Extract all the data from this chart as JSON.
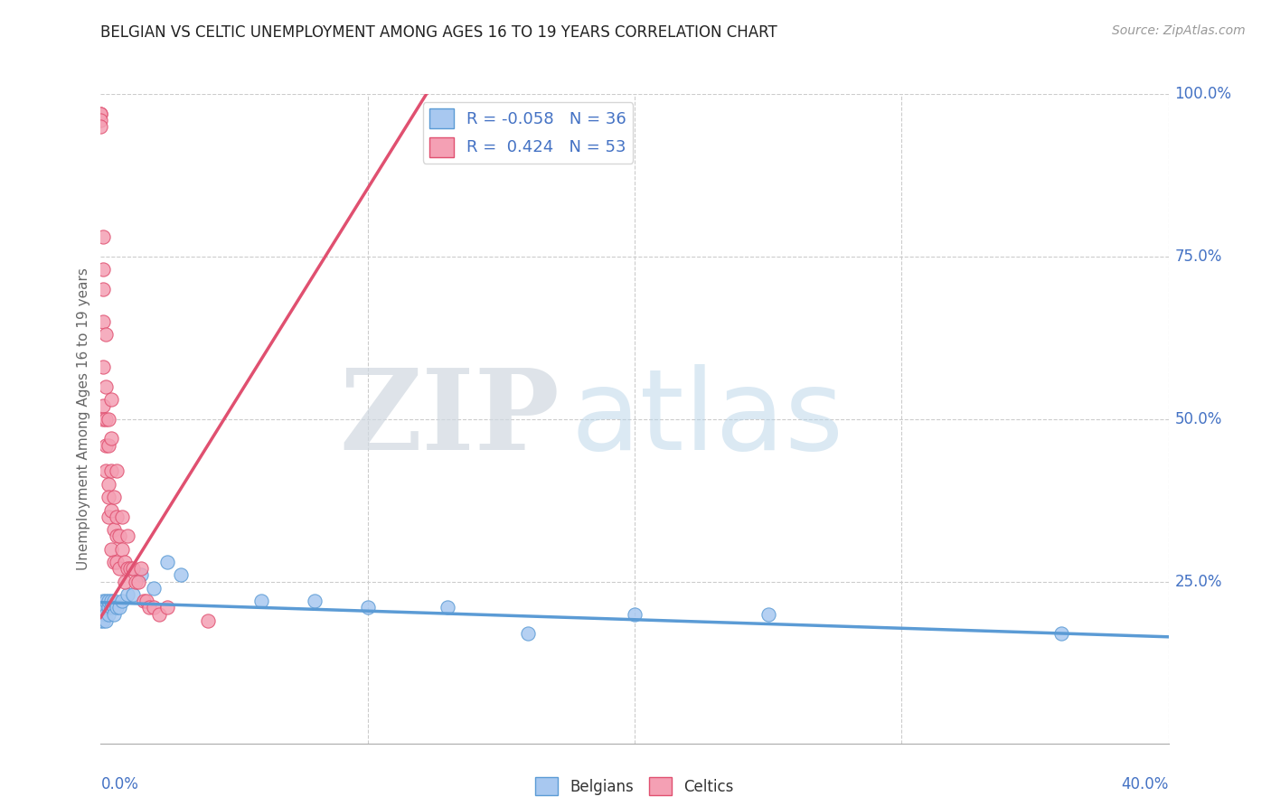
{
  "title": "BELGIAN VS CELTIC UNEMPLOYMENT AMONG AGES 16 TO 19 YEARS CORRELATION CHART",
  "source": "Source: ZipAtlas.com",
  "ylabel_label": "Unemployment Among Ages 16 to 19 years",
  "legend_labels": [
    "Belgians",
    "Celtics"
  ],
  "belgian_color": "#a8c8f0",
  "celtic_color": "#f4a0b4",
  "belgian_line_color": "#5b9bd5",
  "celtic_line_color": "#e05070",
  "R_belgian": -0.058,
  "N_belgian": 36,
  "R_celtic": 0.424,
  "N_celtic": 53,
  "watermark_zip": "ZIP",
  "watermark_atlas": "atlas",
  "background_color": "#ffffff",
  "grid_color": "#cccccc",
  "axis_color": "#4472c4",
  "xlim": [
    0.0,
    0.4
  ],
  "ylim": [
    0.0,
    1.0
  ],
  "belgians_x": [
    0.0,
    0.0,
    0.0,
    0.001,
    0.001,
    0.001,
    0.001,
    0.002,
    0.002,
    0.002,
    0.002,
    0.003,
    0.003,
    0.003,
    0.004,
    0.004,
    0.005,
    0.005,
    0.005,
    0.006,
    0.007,
    0.008,
    0.01,
    0.012,
    0.015,
    0.02,
    0.025,
    0.03,
    0.06,
    0.08,
    0.1,
    0.13,
    0.16,
    0.2,
    0.25,
    0.36
  ],
  "belgians_y": [
    0.2,
    0.21,
    0.19,
    0.22,
    0.21,
    0.2,
    0.19,
    0.21,
    0.2,
    0.22,
    0.19,
    0.21,
    0.22,
    0.2,
    0.21,
    0.22,
    0.21,
    0.2,
    0.22,
    0.21,
    0.21,
    0.22,
    0.23,
    0.23,
    0.26,
    0.24,
    0.28,
    0.26,
    0.22,
    0.22,
    0.21,
    0.21,
    0.17,
    0.2,
    0.2,
    0.17
  ],
  "celtics_x": [
    0.0,
    0.0,
    0.0,
    0.0,
    0.001,
    0.001,
    0.001,
    0.001,
    0.001,
    0.001,
    0.001,
    0.002,
    0.002,
    0.002,
    0.002,
    0.002,
    0.003,
    0.003,
    0.003,
    0.003,
    0.003,
    0.004,
    0.004,
    0.004,
    0.004,
    0.004,
    0.005,
    0.005,
    0.005,
    0.006,
    0.006,
    0.006,
    0.006,
    0.007,
    0.007,
    0.008,
    0.008,
    0.009,
    0.009,
    0.01,
    0.01,
    0.011,
    0.012,
    0.013,
    0.014,
    0.015,
    0.016,
    0.017,
    0.018,
    0.02,
    0.022,
    0.025,
    0.04
  ],
  "celtics_y": [
    0.97,
    0.97,
    0.96,
    0.95,
    0.78,
    0.73,
    0.7,
    0.65,
    0.58,
    0.52,
    0.5,
    0.63,
    0.55,
    0.5,
    0.46,
    0.42,
    0.5,
    0.46,
    0.4,
    0.38,
    0.35,
    0.53,
    0.47,
    0.42,
    0.36,
    0.3,
    0.38,
    0.33,
    0.28,
    0.42,
    0.35,
    0.32,
    0.28,
    0.32,
    0.27,
    0.35,
    0.3,
    0.28,
    0.25,
    0.32,
    0.27,
    0.27,
    0.27,
    0.25,
    0.25,
    0.27,
    0.22,
    0.22,
    0.21,
    0.21,
    0.2,
    0.21,
    0.19
  ],
  "belgian_trend_x": [
    0.0,
    0.4
  ],
  "belgian_trend_y": [
    0.218,
    0.165
  ],
  "celtic_trend_x": [
    0.0,
    0.125
  ],
  "celtic_trend_y": [
    0.195,
    1.02
  ]
}
